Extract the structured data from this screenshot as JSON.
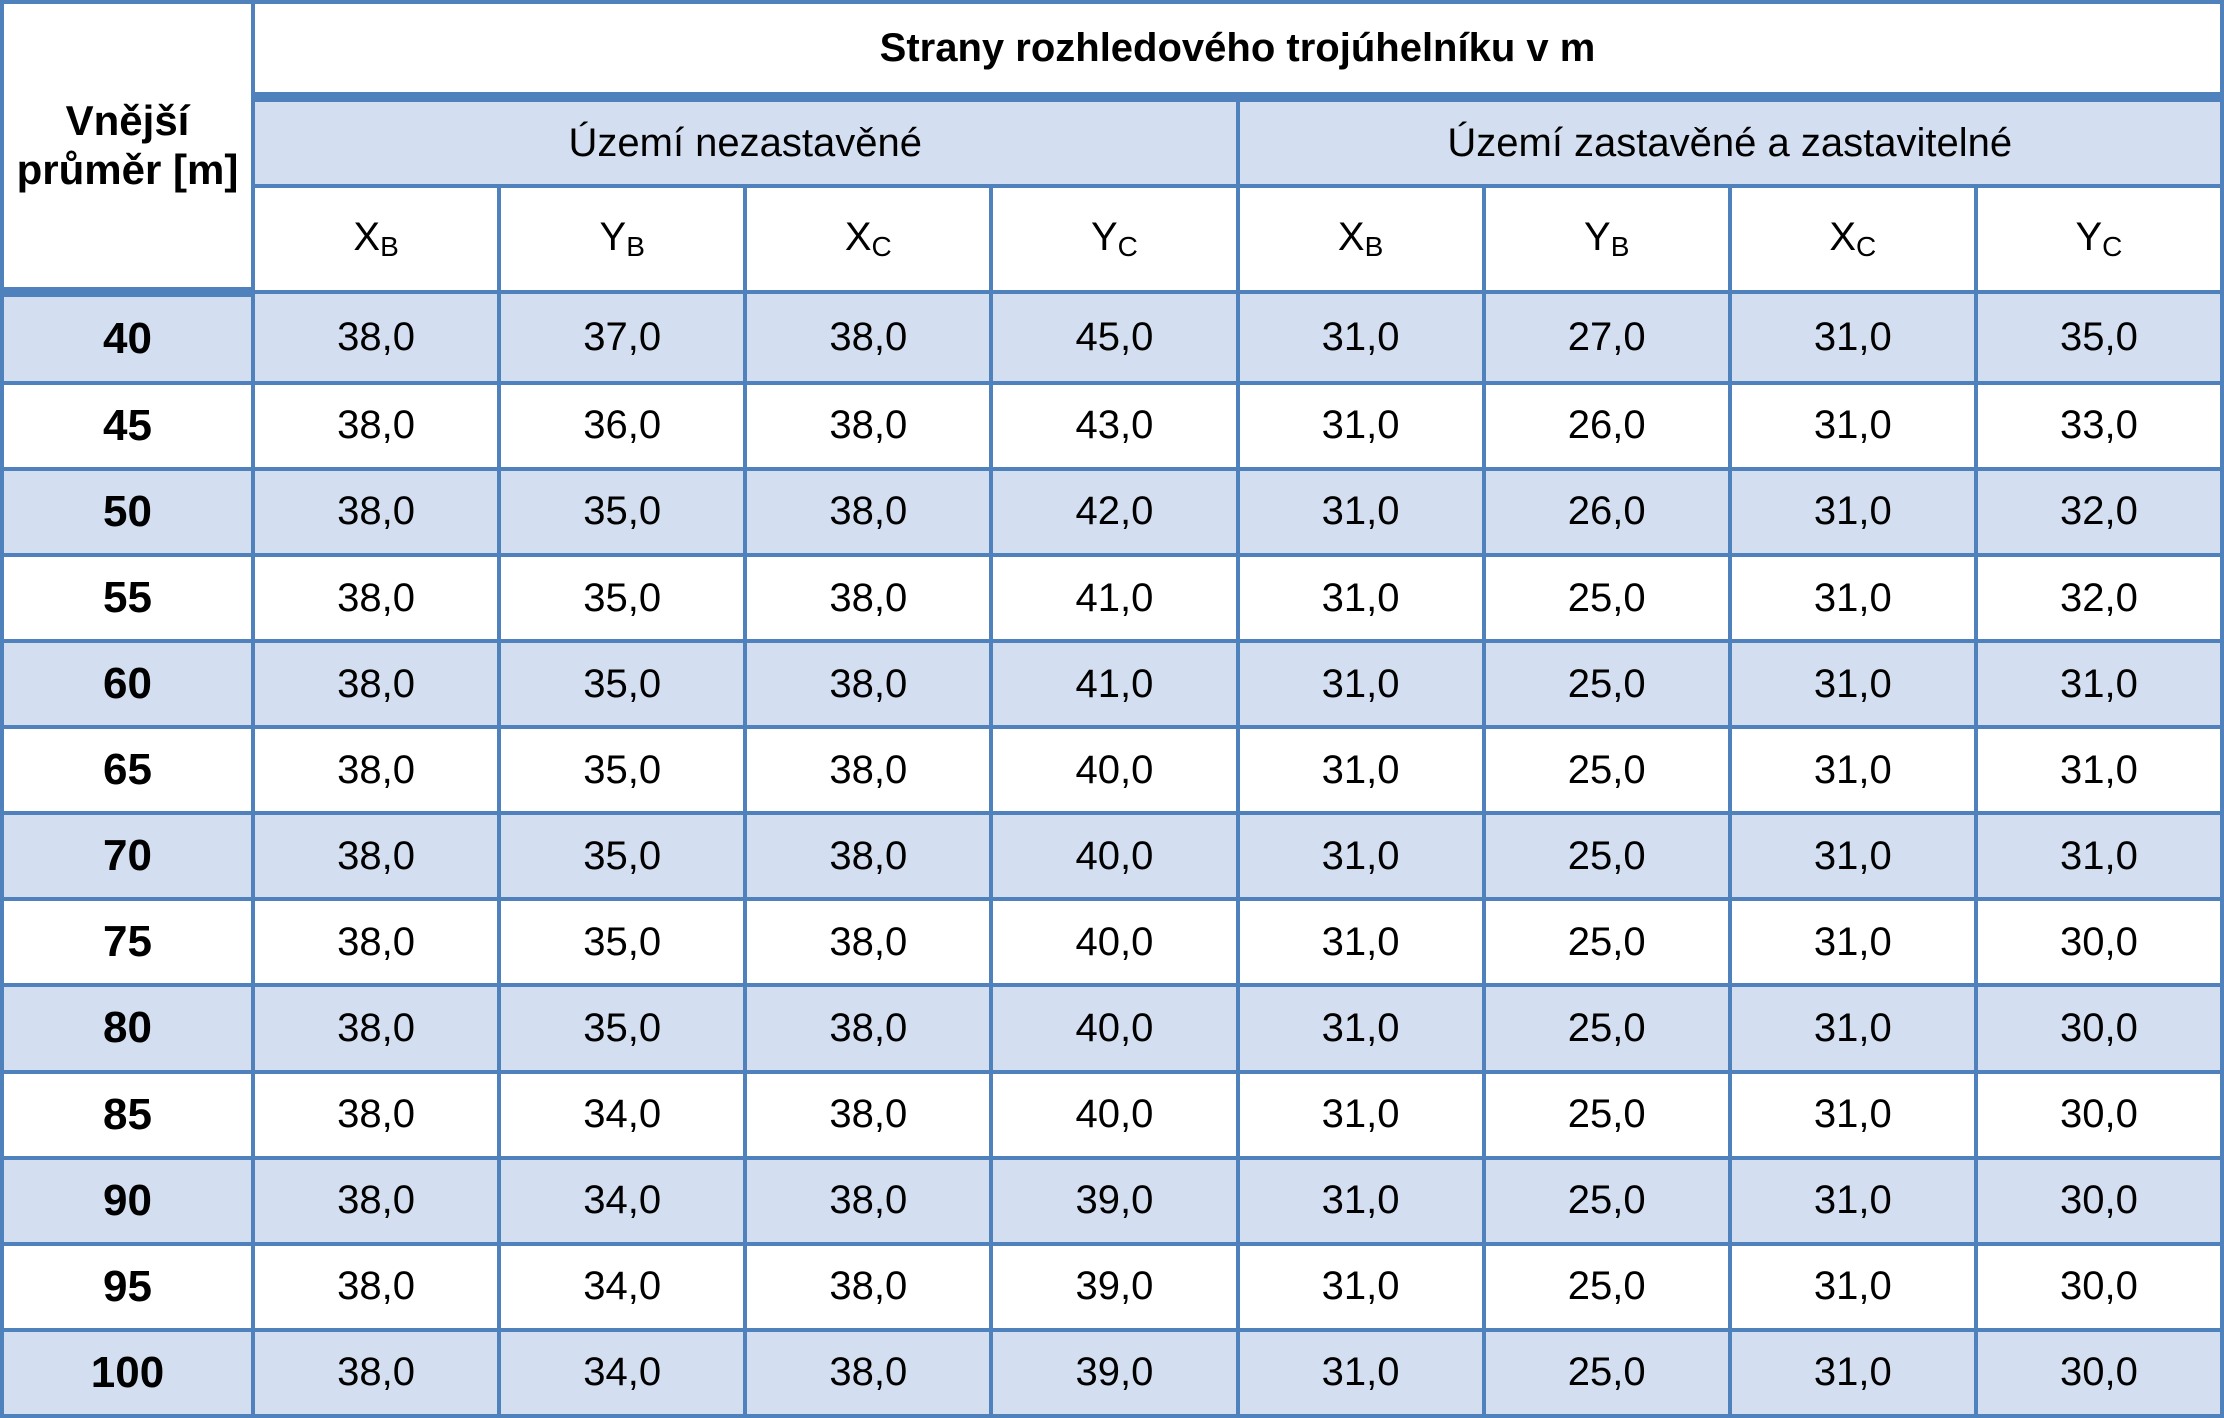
{
  "header": {
    "row_label": "Vnější průměr [m]",
    "title": "Strany rozhledového trojúhelníku v m",
    "groups": [
      "Území nezastavěné",
      "Území zastavěné a zastavitelné"
    ],
    "columns": [
      {
        "main": "X",
        "sub": "B"
      },
      {
        "main": "Y",
        "sub": "B"
      },
      {
        "main": "X",
        "sub": "C"
      },
      {
        "main": "Y",
        "sub": "C"
      },
      {
        "main": "X",
        "sub": "B"
      },
      {
        "main": "Y",
        "sub": "B"
      },
      {
        "main": "X",
        "sub": "C"
      },
      {
        "main": "Y",
        "sub": "C"
      }
    ]
  },
  "table": {
    "rows": [
      {
        "label": "40",
        "cells": [
          "38,0",
          "37,0",
          "38,0",
          "45,0",
          "31,0",
          "27,0",
          "31,0",
          "35,0"
        ]
      },
      {
        "label": "45",
        "cells": [
          "38,0",
          "36,0",
          "38,0",
          "43,0",
          "31,0",
          "26,0",
          "31,0",
          "33,0"
        ]
      },
      {
        "label": "50",
        "cells": [
          "38,0",
          "35,0",
          "38,0",
          "42,0",
          "31,0",
          "26,0",
          "31,0",
          "32,0"
        ]
      },
      {
        "label": "55",
        "cells": [
          "38,0",
          "35,0",
          "38,0",
          "41,0",
          "31,0",
          "25,0",
          "31,0",
          "32,0"
        ]
      },
      {
        "label": "60",
        "cells": [
          "38,0",
          "35,0",
          "38,0",
          "41,0",
          "31,0",
          "25,0",
          "31,0",
          "31,0"
        ]
      },
      {
        "label": "65",
        "cells": [
          "38,0",
          "35,0",
          "38,0",
          "40,0",
          "31,0",
          "25,0",
          "31,0",
          "31,0"
        ]
      },
      {
        "label": "70",
        "cells": [
          "38,0",
          "35,0",
          "38,0",
          "40,0",
          "31,0",
          "25,0",
          "31,0",
          "31,0"
        ]
      },
      {
        "label": "75",
        "cells": [
          "38,0",
          "35,0",
          "38,0",
          "40,0",
          "31,0",
          "25,0",
          "31,0",
          "30,0"
        ]
      },
      {
        "label": "80",
        "cells": [
          "38,0",
          "35,0",
          "38,0",
          "40,0",
          "31,0",
          "25,0",
          "31,0",
          "30,0"
        ]
      },
      {
        "label": "85",
        "cells": [
          "38,0",
          "34,0",
          "38,0",
          "40,0",
          "31,0",
          "25,0",
          "31,0",
          "30,0"
        ]
      },
      {
        "label": "90",
        "cells": [
          "38,0",
          "34,0",
          "38,0",
          "39,0",
          "31,0",
          "25,0",
          "31,0",
          "30,0"
        ]
      },
      {
        "label": "95",
        "cells": [
          "38,0",
          "34,0",
          "38,0",
          "39,0",
          "31,0",
          "25,0",
          "31,0",
          "30,0"
        ]
      },
      {
        "label": "100",
        "cells": [
          "38,0",
          "34,0",
          "38,0",
          "39,0",
          "31,0",
          "25,0",
          "31,0",
          "30,0"
        ]
      }
    ]
  }
}
